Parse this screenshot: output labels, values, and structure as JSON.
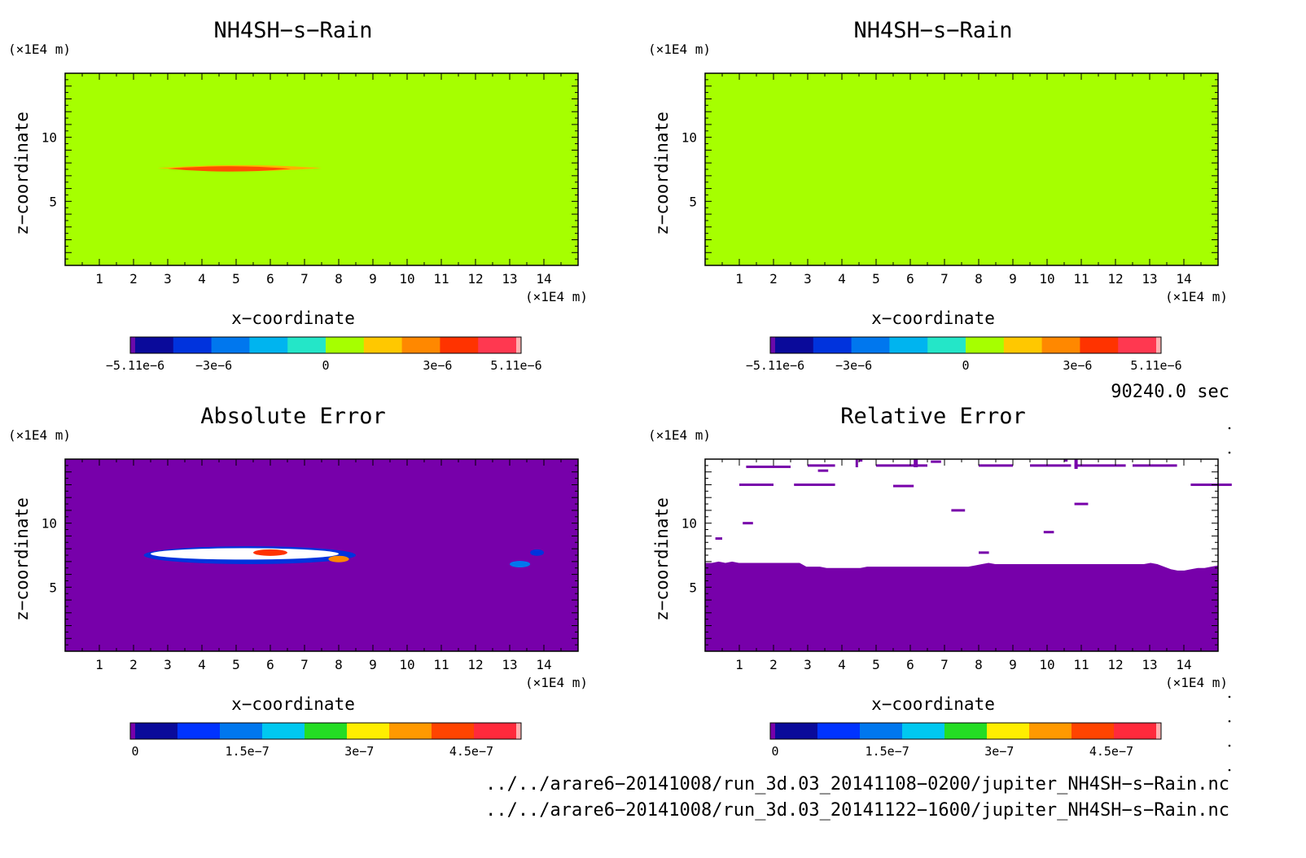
{
  "panels": [
    {
      "title": "NH4SH−s−Rain",
      "ylabel": "z−coordinate",
      "xlabel": "x−coordinate",
      "yunit": "(×1E4 m)",
      "xunit": "(×1E4 m)"
    },
    {
      "title": "NH4SH−s−Rain",
      "ylabel": "z−coordinate",
      "xlabel": "x−coordinate",
      "yunit": "(×1E4 m)",
      "xunit": "(×1E4 m)"
    },
    {
      "title": "Absolute Error",
      "ylabel": "z−coordinate",
      "xlabel": "x−coordinate",
      "yunit": "(×1E4 m)",
      "xunit": "(×1E4 m)"
    },
    {
      "title": "Relative Error",
      "ylabel": "z−coordinate",
      "xlabel": "x−coordinate",
      "yunit": "(×1E4 m)",
      "xunit": "(×1E4 m)"
    }
  ],
  "time_label": "90240.0 sec",
  "file_paths": [
    "../../arare6−20141008/run_3d.03_20141108−0200/jupiter_NH4SH−s−Rain.nc",
    "../../arare6−20141008/run_3d.03_20141122−1600/jupiter_NH4SH−s−Rain.nc"
  ],
  "chart_data": [
    {
      "type": "heatmap",
      "title": "NH4SH−s−Rain",
      "xlabel": "x−coordinate",
      "ylabel": "z−coordinate",
      "xlim": [
        0,
        15
      ],
      "ylim": [
        0,
        15
      ],
      "x_ticks": [
        1,
        2,
        3,
        4,
        5,
        6,
        7,
        8,
        9,
        10,
        11,
        12,
        13,
        14
      ],
      "y_ticks": [
        5,
        10
      ],
      "background_value": 0,
      "features": [
        {
          "kind": "band",
          "x_range": [
            2.7,
            7.5
          ],
          "z": 7.6,
          "value": 1.5e-06,
          "color": "#ffb300"
        },
        {
          "kind": "band",
          "x_range": [
            3.0,
            6.6
          ],
          "z": 7.55,
          "value": 3.5e-06,
          "color": "#ff5000"
        }
      ],
      "colorbar": {
        "levels": 10,
        "colors": [
          "#6a0aaa",
          "#0a0a9a",
          "#0033dd",
          "#0077ee",
          "#00b4ef",
          "#24e6c8",
          "#a6ff00",
          "#ffc800",
          "#ff8800",
          "#ff3300",
          "#ff3850",
          "#ffb0b0"
        ],
        "tick_labels": [
          "−5.11e−6",
          "−3e−6",
          "0",
          "3e−6",
          "5.11e−6"
        ],
        "tick_values": [
          -5.11e-06,
          -3e-06,
          0,
          3e-06,
          5.11e-06
        ],
        "range": [
          -5.11e-06,
          5.11e-06
        ]
      }
    },
    {
      "type": "heatmap",
      "title": "NH4SH−s−Rain",
      "xlabel": "x−coordinate",
      "ylabel": "z−coordinate",
      "xlim": [
        0,
        15
      ],
      "ylim": [
        0,
        15
      ],
      "x_ticks": [
        1,
        2,
        3,
        4,
        5,
        6,
        7,
        8,
        9,
        10,
        11,
        12,
        13,
        14
      ],
      "y_ticks": [
        5,
        10
      ],
      "background_value": 0,
      "features": [],
      "colorbar": {
        "levels": 10,
        "colors": [
          "#6a0aaa",
          "#0a0a9a",
          "#0033dd",
          "#0077ee",
          "#00b4ef",
          "#24e6c8",
          "#a6ff00",
          "#ffc800",
          "#ff8800",
          "#ff3300",
          "#ff3850",
          "#ffb0b0"
        ],
        "tick_labels": [
          "−5.11e−6",
          "−3e−6",
          "0",
          "3e−6",
          "5.11e−6"
        ],
        "tick_values": [
          -5.11e-06,
          -3e-06,
          0,
          3e-06,
          5.11e-06
        ],
        "range": [
          -5.11e-06,
          5.11e-06
        ]
      }
    },
    {
      "type": "heatmap",
      "title": "Absolute Error",
      "xlabel": "x−coordinate",
      "ylabel": "z−coordinate",
      "xlim": [
        0,
        15
      ],
      "ylim": [
        0,
        15
      ],
      "x_ticks": [
        1,
        2,
        3,
        4,
        5,
        6,
        7,
        8,
        9,
        10,
        11,
        12,
        13,
        14
      ],
      "y_ticks": [
        5,
        10
      ],
      "background_value": 0,
      "features": [
        {
          "kind": "blob",
          "x_range": [
            2.3,
            8.5
          ],
          "z": 7.5,
          "value": 2e-07,
          "color": "#0033dd"
        },
        {
          "kind": "blob",
          "x_range": [
            2.5,
            8.0
          ],
          "z": 7.6,
          "value": 4e-07,
          "color": "#ffffff"
        },
        {
          "kind": "blob",
          "x_range": [
            5.5,
            6.5
          ],
          "z": 7.7,
          "value": 4.5e-07,
          "color": "#ff3300"
        },
        {
          "kind": "blob",
          "x_range": [
            7.7,
            8.3
          ],
          "z": 7.2,
          "value": 3.5e-07,
          "color": "#ff8800"
        },
        {
          "kind": "blob",
          "x_range": [
            13.0,
            13.6
          ],
          "z": 6.8,
          "value": 2e-07,
          "color": "#0077ee"
        },
        {
          "kind": "blob",
          "x_range": [
            13.6,
            14.0
          ],
          "z": 7.7,
          "value": 1e-07,
          "color": "#0033dd"
        }
      ],
      "colorbar": {
        "levels": 10,
        "colors": [
          "#7700aa",
          "#0a0a9a",
          "#0033ff",
          "#0077ee",
          "#00c8f0",
          "#24dd24",
          "#ffee00",
          "#ff9900",
          "#ff4400",
          "#ff2a3c",
          "#ffb0b0"
        ],
        "tick_labels": [
          "0",
          "1.5e−7",
          "3e−7",
          "4.5e−7"
        ],
        "tick_values": [
          0,
          1.5e-07,
          3e-07,
          4.5e-07
        ],
        "range": [
          0,
          5.1e-07
        ]
      }
    },
    {
      "type": "heatmap",
      "title": "Relative Error",
      "xlabel": "x−coordinate",
      "ylabel": "z−coordinate",
      "xlim": [
        0,
        15
      ],
      "ylim": [
        0,
        15
      ],
      "x_ticks": [
        1,
        2,
        3,
        4,
        5,
        6,
        7,
        8,
        9,
        10,
        11,
        12,
        13,
        14
      ],
      "y_ticks": [
        5,
        10
      ],
      "background_value": 0,
      "boundary_z": [
        6.9,
        6.9,
        7.0,
        6.9,
        7.0,
        6.9,
        6.9,
        6.9,
        6.9,
        6.9,
        6.9,
        6.9,
        6.9,
        6.9,
        6.9,
        6.6,
        6.6,
        6.6,
        6.5,
        6.5,
        6.5,
        6.5,
        6.5,
        6.5,
        6.6,
        6.6,
        6.6,
        6.6,
        6.6,
        6.6,
        6.6,
        6.6,
        6.6,
        6.6,
        6.6,
        6.6,
        6.6,
        6.6,
        6.6,
        6.6,
        6.7,
        6.8,
        6.9,
        6.8,
        6.8,
        6.8,
        6.8,
        6.8,
        6.8,
        6.8,
        6.8,
        6.8,
        6.8,
        6.8,
        6.8,
        6.8,
        6.8,
        6.8,
        6.8,
        6.8,
        6.8,
        6.8,
        6.8,
        6.8,
        6.8,
        6.8,
        6.9,
        6.8,
        6.6,
        6.4,
        6.3,
        6.3,
        6.4,
        6.5,
        6.5,
        6.6,
        6.7
      ],
      "colorbar": {
        "levels": 10,
        "colors": [
          "#7700aa",
          "#0a0a9a",
          "#0033ff",
          "#0077ee",
          "#00c8f0",
          "#24dd24",
          "#ffee00",
          "#ff9900",
          "#ff4400",
          "#ff2a3c",
          "#ffb0b0"
        ],
        "tick_labels": [
          "0",
          "1.5e−7",
          "3e−7",
          "4.5e−7"
        ],
        "tick_values": [
          0,
          1.5e-07,
          3e-07,
          4.5e-07
        ],
        "range": [
          0,
          5.1e-07
        ]
      }
    }
  ]
}
